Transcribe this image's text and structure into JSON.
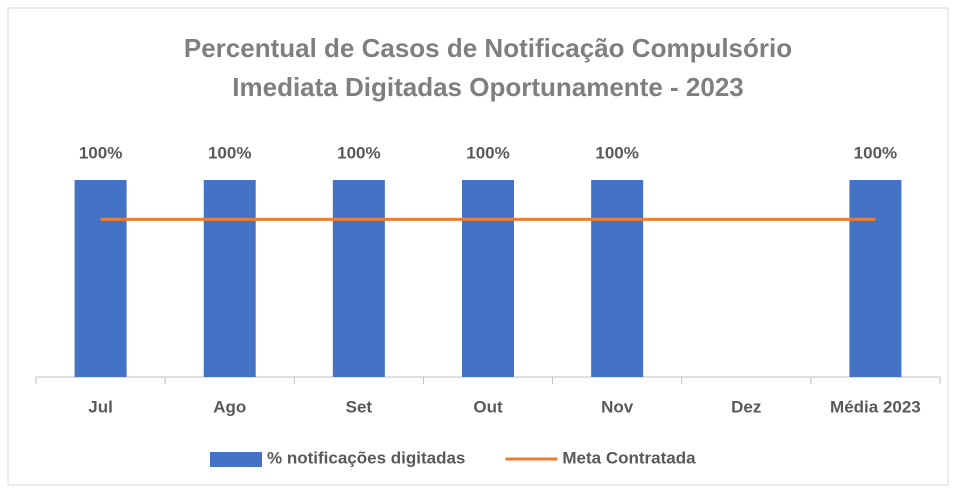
{
  "chart_data": {
    "type": "bar",
    "title": [
      "Percentual de Casos de Notificação  Compulsório",
      "Imediata Digitadas Oportunamente - 2023"
    ],
    "categories": [
      "Jul",
      "Ago",
      "Set",
      "Out",
      "Nov",
      "Dez",
      "Média 2023"
    ],
    "series": [
      {
        "name": "% notificações digitadas",
        "type": "bar",
        "color": "#4472c4",
        "values": [
          100,
          100,
          100,
          100,
          100,
          null,
          100
        ],
        "value_labels": [
          "100%",
          "100%",
          "100%",
          "100%",
          "100%",
          null,
          "100%"
        ]
      },
      {
        "name": "Meta Contratada",
        "type": "line",
        "color": "#ed7d31",
        "values": [
          80,
          80,
          80,
          80,
          80,
          80,
          80
        ]
      }
    ],
    "ylim": [
      0,
      120
    ],
    "legend": "bottom"
  }
}
